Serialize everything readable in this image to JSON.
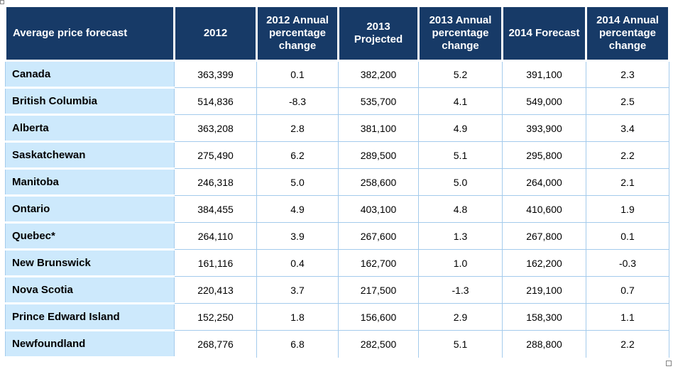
{
  "colors": {
    "header_bg": "#173A67",
    "header_text": "#FFFFFF",
    "label_bg": "#CDE9FC",
    "grid": "#A4CBEC",
    "text": "#000000",
    "handle_border": "#848484"
  },
  "icons": {
    "top_left_handle": "resize-handle-icon",
    "bottom_right_handle": "resize-handle-icon"
  },
  "chart_data": {
    "type": "table",
    "title": "Average price forecast",
    "columns": [
      "Average price forecast",
      "2012",
      "2012 Annual percentage change",
      "2013 Projected",
      "2013 Annual percentage change",
      "2014 Forecast",
      "2014 Annual percentage change"
    ],
    "rows": [
      [
        "Canada",
        "363,399",
        "0.1",
        "382,200",
        "5.2",
        "391,100",
        "2.3"
      ],
      [
        "British Columbia",
        "514,836",
        "-8.3",
        "535,700",
        "4.1",
        "549,000",
        "2.5"
      ],
      [
        "Alberta",
        "363,208",
        "2.8",
        "381,100",
        "4.9",
        "393,900",
        "3.4"
      ],
      [
        "Saskatchewan",
        "275,490",
        "6.2",
        "289,500",
        "5.1",
        "295,800",
        "2.2"
      ],
      [
        "Manitoba",
        "246,318",
        "5.0",
        "258,600",
        "5.0",
        "264,000",
        "2.1"
      ],
      [
        "Ontario",
        "384,455",
        "4.9",
        "403,100",
        "4.8",
        "410,600",
        "1.9"
      ],
      [
        "Quebec*",
        "264,110",
        "3.9",
        "267,600",
        "1.3",
        "267,800",
        "0.1"
      ],
      [
        "New Brunswick",
        "161,116",
        "0.4",
        "162,700",
        "1.0",
        "162,200",
        "-0.3"
      ],
      [
        "Nova Scotia",
        "220,413",
        "3.7",
        "217,500",
        "-1.3",
        "219,100",
        "0.7"
      ],
      [
        "Prince Edward Island",
        "152,250",
        "1.8",
        "156,600",
        "2.9",
        "158,300",
        "1.1"
      ],
      [
        "Newfoundland",
        "268,776",
        "6.8",
        "282,500",
        "5.1",
        "288,800",
        "2.2"
      ]
    ]
  }
}
